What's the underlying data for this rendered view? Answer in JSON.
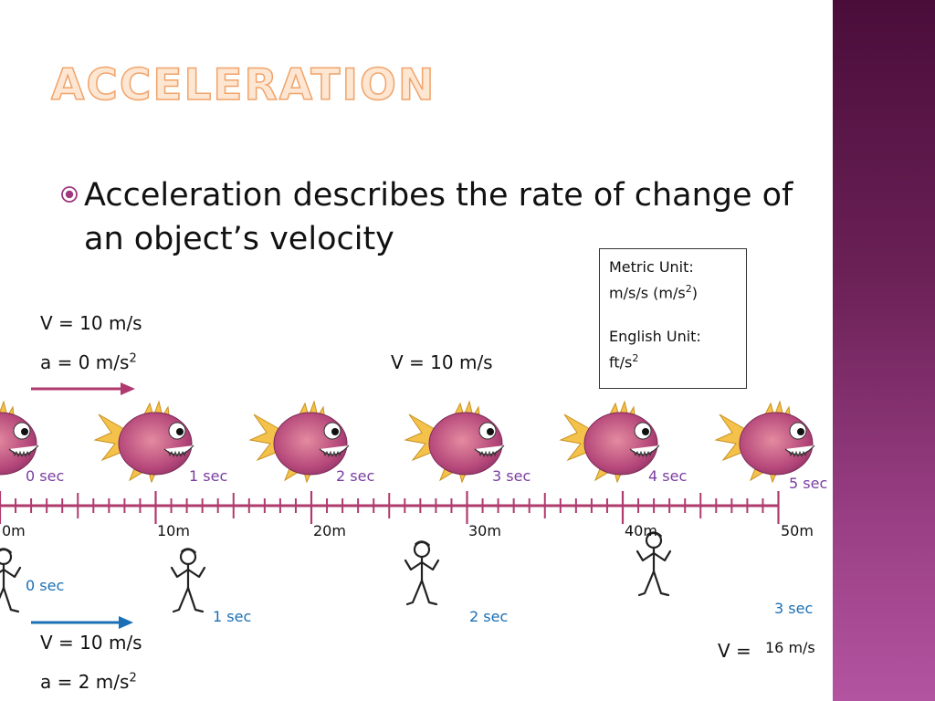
{
  "slide": {
    "title": "ACCELERATION",
    "bullet": "Acceleration describes the rate of change of an object’s velocity"
  },
  "unit_box": {
    "metric_label": "Metric Unit:",
    "metric_value": "m/s/s (m/s",
    "metric_sup": "2",
    "metric_close": ")",
    "english_label": "English Unit:",
    "english_value": "ft/s",
    "english_sup": "2"
  },
  "fish_section": {
    "velocity_left": "V = 10 m/s",
    "accel_left": "a = 0 m/s",
    "accel_sup": "2",
    "velocity_mid": "V = 10 m/s",
    "time_labels": [
      "0 sec",
      "1 sec",
      "2 sec",
      "3 sec",
      "4 sec",
      "5 sec"
    ]
  },
  "ruler": {
    "distance_labels": [
      "0m",
      "10m",
      "20m",
      "30m",
      "40m",
      "50m"
    ]
  },
  "person_section": {
    "time_labels": [
      "0 sec",
      "1 sec",
      "2 sec",
      "3 sec"
    ],
    "velocity": "V = 10 m/s",
    "accel": "a = 2 m/s",
    "accel_sup": "2",
    "final_v_label": "V =",
    "final_v_value": "16 m/s"
  },
  "colors": {
    "sidebar": "#6c2157",
    "title_fill": "#fde6d2",
    "title_stroke": "#f0a36a",
    "ruler": "#b03a6e",
    "fish_arrow": "#b03a6e",
    "person_arrow": "#1a6fb5",
    "fish_time_text": "#7a3ea0",
    "person_time_text": "#1a6fb5"
  },
  "icons": {
    "bullet": "circle-bullet-icon",
    "fish": "fish-icon",
    "person": "stick-figure-icon"
  }
}
